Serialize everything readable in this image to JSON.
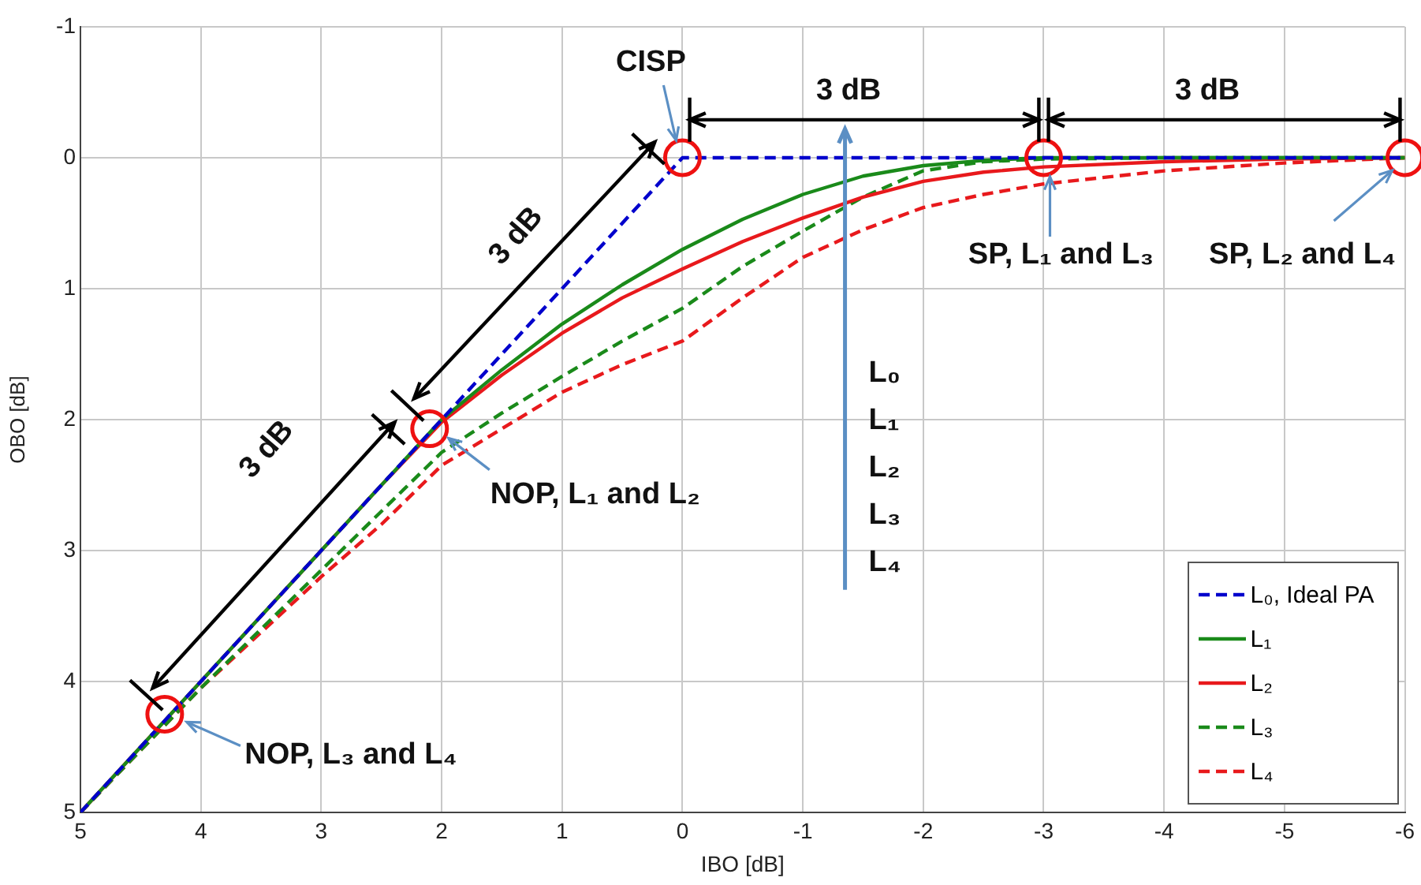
{
  "chart_data": {
    "type": "line",
    "xlabel": "IBO [dB]",
    "ylabel": "OBO [dB]",
    "x": [
      5,
      4,
      3,
      2.5,
      2,
      1.5,
      1,
      0.5,
      0,
      -0.5,
      -1,
      -1.5,
      -2,
      -2.5,
      -3,
      -4,
      -5,
      -6
    ],
    "series": [
      {
        "name": "L₀, Ideal PA",
        "color": "#0000cc",
        "line_style": "dashed",
        "x": [
          5,
          0,
          -6
        ],
        "values": [
          5,
          0,
          0
        ]
      },
      {
        "name": "L₁",
        "color": "#1a8a1a",
        "line_style": "solid",
        "values": [
          5,
          4,
          3,
          2.5,
          2.0,
          1.62,
          1.27,
          0.97,
          0.7,
          0.47,
          0.28,
          0.14,
          0.06,
          0.02,
          0,
          0,
          0,
          0
        ]
      },
      {
        "name": "L₂",
        "color": "#e8191c",
        "line_style": "solid",
        "values": [
          5,
          4,
          3,
          2.5,
          2.02,
          1.66,
          1.34,
          1.07,
          0.85,
          0.64,
          0.46,
          0.3,
          0.18,
          0.11,
          0.07,
          0.03,
          0.01,
          0
        ]
      },
      {
        "name": "L₃",
        "color": "#1a8a1a",
        "line_style": "dashed",
        "values": [
          5,
          4.05,
          3.15,
          2.7,
          2.25,
          1.95,
          1.67,
          1.4,
          1.15,
          0.83,
          0.56,
          0.3,
          0.1,
          0.03,
          0.01,
          0,
          0,
          0
        ]
      },
      {
        "name": "L₄",
        "color": "#e8191c",
        "line_style": "dashed",
        "values": [
          5,
          4.05,
          3.2,
          2.8,
          2.35,
          2.07,
          1.79,
          1.58,
          1.4,
          1.07,
          0.76,
          0.55,
          0.38,
          0.28,
          0.2,
          0.1,
          0.04,
          0
        ]
      }
    ],
    "xlim": [
      5,
      -6
    ],
    "xticks": [
      5,
      4,
      3,
      2,
      1,
      0,
      -1,
      -2,
      -3,
      -4,
      -5,
      -6
    ],
    "ylim": [
      5,
      -1
    ],
    "yticks": [
      -1,
      0,
      1,
      2,
      3,
      4,
      5
    ],
    "grid": true,
    "legend": "bottom right",
    "marker": "none",
    "annotations": [
      {
        "text": "CISP",
        "x": 0,
        "y": 0
      },
      {
        "text": "SP, L₁ and L₃",
        "x": -3,
        "y": 0
      },
      {
        "text": "SP, L₂ and L₄",
        "x": -6,
        "y": 0
      },
      {
        "text": "NOP, L₁ and L₂",
        "x": 2.1,
        "y": 2.07
      },
      {
        "text": "NOP, L₃ and L₄",
        "x": 4.3,
        "y": 4.25
      },
      "3 dB",
      "3 dB",
      "3 dB",
      "3 dB",
      "L₀",
      "L₁",
      "L₂",
      "L₃",
      "L₄"
    ]
  }
}
